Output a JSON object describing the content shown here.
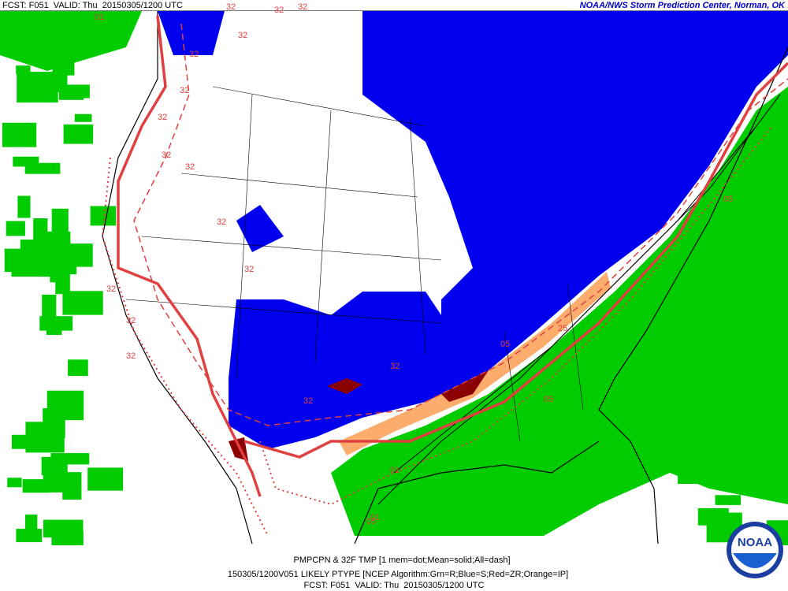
{
  "header": {
    "left": "FCST: F051  VALID: Thu  20150305/1200 UTC",
    "right": "NOAA/NWS Storm Prediction Center, Norman, OK"
  },
  "footer": {
    "line1": "PMPCPN & 32F TMP [1 mem=dot;Mean=solid;All=dash]",
    "line2": "150305/1200V051 LIKELY PTYPE [NCEP Algorithm:Grn=R;Blue=S;Red=ZR;Orange=IP]",
    "line3": "FCST: F051  VALID: Thu  20150305/1200 UTC"
  },
  "logo": "NOAA",
  "contour_labels": [
    "32",
    "32",
    "32",
    "32",
    "32",
    "32",
    "32",
    "32",
    "32",
    "32",
    "32",
    "32",
    "32",
    "32",
    "32",
    "32",
    "05",
    "05",
    "05",
    "25",
    "01",
    "01",
    "01",
    "05"
  ]
}
